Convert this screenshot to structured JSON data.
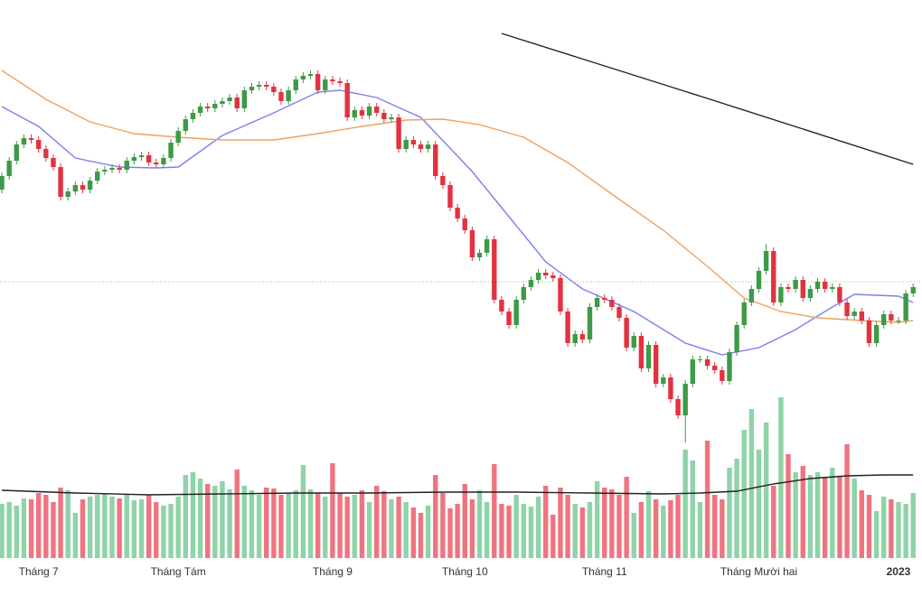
{
  "chart_data": {
    "type": "candlestick",
    "xlim": [
      -0.25,
      125.2
    ],
    "ylim": [
      0,
      680
    ],
    "y2lim": [
      0,
      618
    ],
    "xticks": [
      {
        "value": 5,
        "label": "Tháng 7"
      },
      {
        "value": 24,
        "label": "Tháng Tám"
      },
      {
        "value": 45,
        "label": "Tháng 9"
      },
      {
        "value": 63,
        "label": "Tháng 10"
      },
      {
        "value": 82,
        "label": "Tháng 11"
      },
      {
        "value": 103,
        "label": "Tháng Mười hai"
      },
      {
        "value": 122,
        "label": "2023"
      }
    ],
    "up_color": "#3d9a46",
    "down_color": "#e2323f",
    "volume_up_color": "#8fd3a8",
    "volume_down_color": "#ef7480",
    "open": [
      470,
      485,
      502,
      520,
      527,
      525,
      515,
      505,
      495,
      462,
      468,
      475,
      470,
      480,
      490,
      492,
      494,
      492,
      502,
      506,
      508,
      500,
      498,
      505,
      522,
      535,
      548,
      555,
      562,
      560,
      565,
      568,
      572,
      560,
      580,
      584,
      586,
      584,
      578,
      568,
      580,
      592,
      596,
      598,
      580,
      592,
      590,
      588,
      550,
      558,
      552,
      562,
      555,
      548,
      550,
      515,
      525,
      520,
      515,
      520,
      485,
      475,
      450,
      438,
      425,
      395,
      400,
      415,
      348,
      335,
      320,
      348,
      362,
      370,
      378,
      375,
      372,
      335,
      300,
      310,
      304,
      340,
      350,
      348,
      340,
      328,
      295,
      308,
      272,
      298,
      255,
      262,
      238,
      220,
      255,
      282,
      282,
      275,
      270,
      258,
      290,
      320,
      345,
      360,
      380,
      402,
      345,
      362,
      360,
      370,
      350,
      360,
      368,
      360,
      362,
      345,
      330,
      335,
      325,
      300,
      320,
      332,
      325,
      325,
      355
    ],
    "high": [
      489,
      506,
      524,
      531,
      531,
      529,
      519,
      509,
      499,
      472,
      479,
      479,
      484,
      494,
      496,
      498,
      498,
      506,
      510,
      512,
      512,
      504,
      509,
      526,
      539,
      552,
      559,
      566,
      566,
      569,
      572,
      576,
      576,
      584,
      588,
      590,
      590,
      588,
      582,
      584,
      596,
      600,
      602,
      602,
      596,
      596,
      594,
      592,
      562,
      562,
      566,
      566,
      559,
      554,
      554,
      529,
      529,
      524,
      524,
      524,
      489,
      479,
      454,
      442,
      429,
      404,
      419,
      419,
      352,
      339,
      352,
      366,
      374,
      382,
      382,
      379,
      376,
      339,
      314,
      314,
      344,
      354,
      354,
      352,
      344,
      332,
      312,
      312,
      302,
      302,
      266,
      266,
      242,
      259,
      286,
      286,
      286,
      279,
      274,
      294,
      324,
      349,
      364,
      384,
      410,
      406,
      366,
      366,
      374,
      374,
      364,
      372,
      372,
      366,
      366,
      349,
      339,
      339,
      329,
      324,
      336,
      336,
      329,
      359,
      366
    ],
    "low": [
      466,
      481,
      498,
      516,
      521,
      511,
      501,
      491,
      458,
      458,
      464,
      466,
      466,
      476,
      486,
      488,
      488,
      488,
      498,
      502,
      496,
      494,
      494,
      501,
      518,
      531,
      544,
      551,
      556,
      556,
      561,
      564,
      556,
      556,
      576,
      580,
      580,
      574,
      564,
      564,
      576,
      588,
      592,
      576,
      576,
      586,
      584,
      546,
      546,
      548,
      548,
      551,
      544,
      544,
      511,
      511,
      516,
      511,
      511,
      481,
      471,
      446,
      434,
      421,
      391,
      391,
      396,
      344,
      331,
      316,
      316,
      344,
      358,
      366,
      371,
      368,
      331,
      296,
      296,
      300,
      300,
      336,
      344,
      336,
      324,
      291,
      291,
      268,
      268,
      251,
      251,
      234,
      216,
      190,
      251,
      278,
      271,
      266,
      254,
      254,
      286,
      316,
      341,
      356,
      376,
      341,
      341,
      356,
      356,
      346,
      346,
      356,
      356,
      356,
      341,
      326,
      326,
      321,
      296,
      296,
      316,
      321,
      321,
      321,
      351
    ],
    "close": [
      485,
      502,
      520,
      527,
      525,
      515,
      505,
      495,
      462,
      468,
      475,
      470,
      480,
      490,
      492,
      494,
      492,
      502,
      506,
      508,
      500,
      498,
      505,
      522,
      535,
      548,
      555,
      562,
      560,
      565,
      568,
      572,
      560,
      580,
      584,
      586,
      584,
      578,
      568,
      580,
      592,
      596,
      598,
      580,
      592,
      590,
      588,
      550,
      558,
      552,
      562,
      555,
      548,
      550,
      515,
      525,
      520,
      515,
      520,
      485,
      475,
      450,
      438,
      425,
      395,
      400,
      415,
      348,
      335,
      320,
      348,
      362,
      370,
      378,
      375,
      372,
      335,
      300,
      310,
      304,
      340,
      350,
      348,
      340,
      328,
      295,
      308,
      272,
      298,
      255,
      262,
      238,
      220,
      255,
      282,
      282,
      275,
      270,
      258,
      290,
      320,
      345,
      360,
      380,
      402,
      345,
      362,
      360,
      370,
      350,
      360,
      368,
      360,
      362,
      345,
      330,
      335,
      325,
      300,
      320,
      332,
      325,
      325,
      355,
      362
    ],
    "volume": [
      60,
      62,
      58,
      66,
      65,
      72,
      70,
      62,
      78,
      75,
      50,
      65,
      68,
      70,
      72,
      68,
      66,
      70,
      64,
      65,
      70,
      62,
      58,
      60,
      68,
      92,
      95,
      88,
      82,
      80,
      85,
      76,
      98,
      80,
      75,
      70,
      78,
      77,
      70,
      72,
      75,
      103,
      76,
      72,
      68,
      105,
      72,
      68,
      70,
      75,
      62,
      80,
      74,
      65,
      68,
      62,
      56,
      50,
      58,
      92,
      72,
      55,
      60,
      82,
      65,
      75,
      62,
      104,
      60,
      58,
      70,
      60,
      57,
      68,
      80,
      48,
      78,
      70,
      60,
      56,
      62,
      85,
      78,
      76,
      70,
      90,
      50,
      62,
      74,
      65,
      58,
      64,
      70,
      120,
      108,
      62,
      130,
      70,
      65,
      100,
      110,
      142,
      165,
      120,
      150,
      80,
      178,
      115,
      95,
      102,
      92,
      95,
      90,
      100,
      90,
      126,
      88,
      75,
      70,
      52,
      68,
      65,
      62,
      60,
      72
    ],
    "lines": [
      {
        "color": "#7b7ff0",
        "x": [
          0,
          5,
          10,
          16,
          21,
          24,
          30,
          37,
          43,
          46,
          51,
          57,
          64,
          69,
          74,
          79,
          86,
          93,
          98,
          103,
          108,
          113,
          116,
          122,
          124
        ],
        "values": [
          562,
          540,
          505,
          495,
          494,
          495,
          530,
          555,
          578,
          580,
          572,
          550,
          490,
          440,
          390,
          360,
          335,
          300,
          287,
          295,
          315,
          340,
          354,
          352,
          345
        ]
      },
      {
        "color": "#f0a060",
        "x": [
          0,
          6,
          12,
          18,
          24,
          30,
          37,
          43,
          49,
          55,
          60,
          65,
          71,
          77,
          83,
          90,
          96,
          101,
          106,
          111,
          117,
          122,
          124
        ],
        "values": [
          602,
          570,
          545,
          532,
          528,
          525,
          525,
          532,
          540,
          547,
          548,
          542,
          528,
          500,
          465,
          425,
          385,
          350,
          335,
          328,
          325,
          323,
          325
        ]
      },
      {
        "color": "#222222",
        "x": [
          68,
          96,
          124
        ],
        "values": [
          643,
          571,
          498
        ]
      },
      {
        "color": "#222222",
        "axis": "y2",
        "x": [
          0,
          10,
          20,
          30,
          40,
          50,
          60,
          70,
          80,
          90,
          95,
          100,
          105,
          110,
          115,
          120,
          124
        ],
        "values": [
          75,
          72,
          70,
          71,
          72,
          72,
          73,
          73,
          72,
          71,
          72,
          74,
          82,
          88,
          91,
          92,
          92
        ]
      }
    ],
    "price_line": {
      "value": 368,
      "color": "#9ccc65"
    }
  }
}
